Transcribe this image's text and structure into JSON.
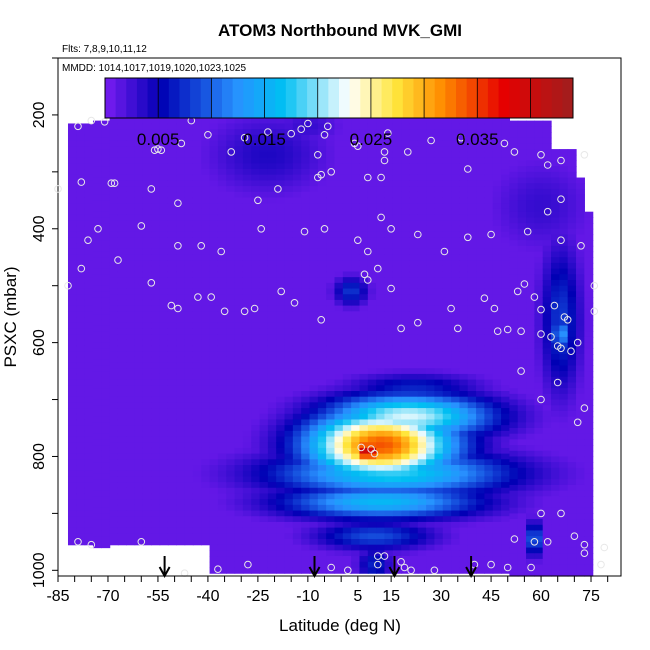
{
  "chart_data": {
    "type": "heatmap",
    "title": "ATOM3 Northbound MVK_GMI",
    "flights_label": "Flts: 7,8,9,10,11,12",
    "dates_label": "MMDD: 1014,1017,1019,1020,1023,1025",
    "xlabel": "Latitude (deg N)",
    "ylabel": "PSXC (mbar)",
    "xlim": [
      -85,
      84
    ],
    "ylim": [
      1010,
      100
    ],
    "y_inverted": true,
    "x_ticks": [
      -85,
      -70,
      -55,
      -40,
      -25,
      -10,
      5,
      15,
      30,
      45,
      60,
      75
    ],
    "y_ticks": [
      200,
      400,
      600,
      800,
      1000
    ],
    "colorbar": {
      "range": [
        0,
        0.044
      ],
      "ticks": [
        0.005,
        0.015,
        0.025,
        0.035
      ],
      "tick_labels": [
        "0.005",
        "0.015",
        "0.025",
        "0.035"
      ],
      "colors": [
        "#7a1df2",
        "#0000b4",
        "#2891ff",
        "#00bff2",
        "#ffffff",
        "#ffe63c",
        "#ff8c00",
        "#e60000",
        "#a01e1e"
      ],
      "stops": [
        0,
        0.12,
        0.28,
        0.38,
        0.52,
        0.62,
        0.72,
        0.85,
        1
      ]
    },
    "background_value": 0.001,
    "blobs": [
      {
        "lat": 12,
        "p": 780,
        "dlat": 22,
        "dp": 60,
        "value": 0.034
      },
      {
        "lat": 8,
        "p": 790,
        "dlat": 5,
        "dp": 25,
        "value": 0.042
      },
      {
        "lat": 20,
        "p": 730,
        "dlat": 25,
        "dp": 40,
        "value": 0.022
      },
      {
        "lat": 15,
        "p": 830,
        "dlat": 35,
        "dp": 40,
        "value": 0.018
      },
      {
        "lat": 12,
        "p": 880,
        "dlat": 30,
        "dp": 30,
        "value": 0.016
      },
      {
        "lat": 10,
        "p": 940,
        "dlat": 18,
        "dp": 25,
        "value": 0.009
      },
      {
        "lat": 22,
        "p": 680,
        "dlat": 20,
        "dp": 25,
        "value": 0.007
      },
      {
        "lat": -22,
        "p": 270,
        "dlat": 18,
        "dp": 70,
        "value": 0.004
      },
      {
        "lat": -10,
        "p": 220,
        "dlat": 10,
        "dp": 30,
        "value": 0.003
      },
      {
        "lat": 3,
        "p": 510,
        "dlat": 5,
        "dp": 25,
        "value": 0.008
      },
      {
        "lat": 66,
        "p": 560,
        "dlat": 6,
        "dp": 130,
        "value": 0.008
      },
      {
        "lat": 66,
        "p": 585,
        "dlat": 3,
        "dp": 30,
        "value": 0.013
      },
      {
        "lat": 58,
        "p": 945,
        "dlat": 2,
        "dp": 30,
        "value": 0.013
      },
      {
        "lat": 10,
        "p": 990,
        "dlat": 5,
        "dp": 30,
        "value": 0.007
      },
      {
        "lat": 60,
        "p": 360,
        "dlat": 15,
        "dp": 80,
        "value": 0.003
      }
    ],
    "arrows_lat": [
      -53,
      -8,
      16,
      39
    ],
    "observations": [
      [
        -75,
        210
      ],
      [
        -79,
        220
      ],
      [
        -71,
        212
      ],
      [
        -62,
        185
      ],
      [
        -45,
        210
      ],
      [
        -40,
        235
      ],
      [
        -33,
        265
      ],
      [
        -22,
        230
      ],
      [
        -29,
        240
      ],
      [
        -55,
        260
      ],
      [
        -56,
        262
      ],
      [
        -54,
        262
      ],
      [
        -48,
        250
      ],
      [
        -85,
        330
      ],
      [
        -78,
        318
      ],
      [
        -68,
        320
      ],
      [
        -69,
        320
      ],
      [
        -57,
        330
      ],
      [
        -49,
        355
      ],
      [
        -60,
        395
      ],
      [
        -73,
        400
      ],
      [
        -76,
        420
      ],
      [
        -49,
        430
      ],
      [
        -42,
        430
      ],
      [
        -36,
        440
      ],
      [
        -24,
        400
      ],
      [
        -4,
        220
      ],
      [
        -10,
        215
      ],
      [
        -12,
        225
      ],
      [
        -5,
        235
      ],
      [
        -15,
        233
      ],
      [
        -7,
        270
      ],
      [
        4,
        250
      ],
      [
        5,
        255
      ],
      [
        8,
        310
      ],
      [
        13,
        265
      ],
      [
        13,
        280
      ],
      [
        12,
        310
      ],
      [
        14,
        232
      ],
      [
        20,
        265
      ],
      [
        27,
        245
      ],
      [
        36,
        240
      ],
      [
        38,
        295
      ],
      [
        49,
        250
      ],
      [
        52,
        265
      ],
      [
        60,
        270
      ],
      [
        62,
        288
      ],
      [
        66,
        280
      ],
      [
        73,
        270
      ],
      [
        -3,
        300
      ],
      [
        -7,
        310
      ],
      [
        -6,
        305
      ],
      [
        -19,
        330
      ],
      [
        -25,
        350
      ],
      [
        -11,
        405
      ],
      [
        -5,
        400
      ],
      [
        5,
        420
      ],
      [
        8,
        440
      ],
      [
        12,
        380
      ],
      [
        15,
        400
      ],
      [
        23,
        410
      ],
      [
        31,
        440
      ],
      [
        38,
        415
      ],
      [
        45,
        410
      ],
      [
        56,
        405
      ],
      [
        62,
        370
      ],
      [
        66,
        348
      ],
      [
        66,
        420
      ],
      [
        72,
        430
      ],
      [
        -67,
        455
      ],
      [
        -57,
        495
      ],
      [
        -49,
        540
      ],
      [
        -43,
        520
      ],
      [
        -39,
        520
      ],
      [
        -35,
        545
      ],
      [
        -29,
        545
      ],
      [
        -26,
        540
      ],
      [
        -18,
        510
      ],
      [
        -14,
        530
      ],
      [
        -6,
        560
      ],
      [
        7,
        480
      ],
      [
        8,
        490
      ],
      [
        11,
        470
      ],
      [
        15,
        505
      ],
      [
        23,
        565
      ],
      [
        33,
        540
      ],
      [
        43,
        522
      ],
      [
        46,
        540
      ],
      [
        53,
        510
      ],
      [
        55,
        497
      ],
      [
        58,
        520
      ],
      [
        60,
        542
      ],
      [
        64,
        535
      ],
      [
        67,
        555
      ],
      [
        68,
        560
      ],
      [
        76,
        500
      ],
      [
        76,
        545
      ],
      [
        -82,
        500
      ],
      [
        -78,
        470
      ],
      [
        -51,
        535
      ],
      [
        18,
        575
      ],
      [
        35,
        575
      ],
      [
        47,
        580
      ],
      [
        50,
        577
      ],
      [
        54,
        580
      ],
      [
        60,
        585
      ],
      [
        63,
        590
      ],
      [
        65,
        606
      ],
      [
        66,
        610
      ],
      [
        69,
        615
      ],
      [
        71,
        600
      ],
      [
        54,
        650
      ],
      [
        65,
        670
      ],
      [
        60,
        700
      ],
      [
        73,
        715
      ],
      [
        71,
        740
      ],
      [
        6,
        784
      ],
      [
        9,
        787
      ],
      [
        10,
        795
      ],
      [
        60,
        900
      ],
      [
        66,
        900
      ],
      [
        52,
        945
      ],
      [
        58,
        950
      ],
      [
        62,
        950
      ],
      [
        70,
        940
      ],
      [
        73,
        955
      ],
      [
        73,
        970
      ],
      [
        79,
        960
      ],
      [
        -79,
        950
      ],
      [
        -75,
        955
      ],
      [
        -60,
        950
      ],
      [
        -28,
        990
      ],
      [
        -3,
        995
      ],
      [
        2,
        1000
      ],
      [
        11,
        975
      ],
      [
        11,
        990
      ],
      [
        13,
        975
      ],
      [
        18,
        985
      ],
      [
        19,
        995
      ],
      [
        21,
        1000
      ],
      [
        28,
        1000
      ],
      [
        -47,
        1005
      ],
      [
        -37,
        998
      ],
      [
        40,
        990
      ],
      [
        45,
        990
      ],
      [
        50,
        995
      ],
      [
        57,
        995
      ],
      [
        78,
        990
      ]
    ]
  }
}
